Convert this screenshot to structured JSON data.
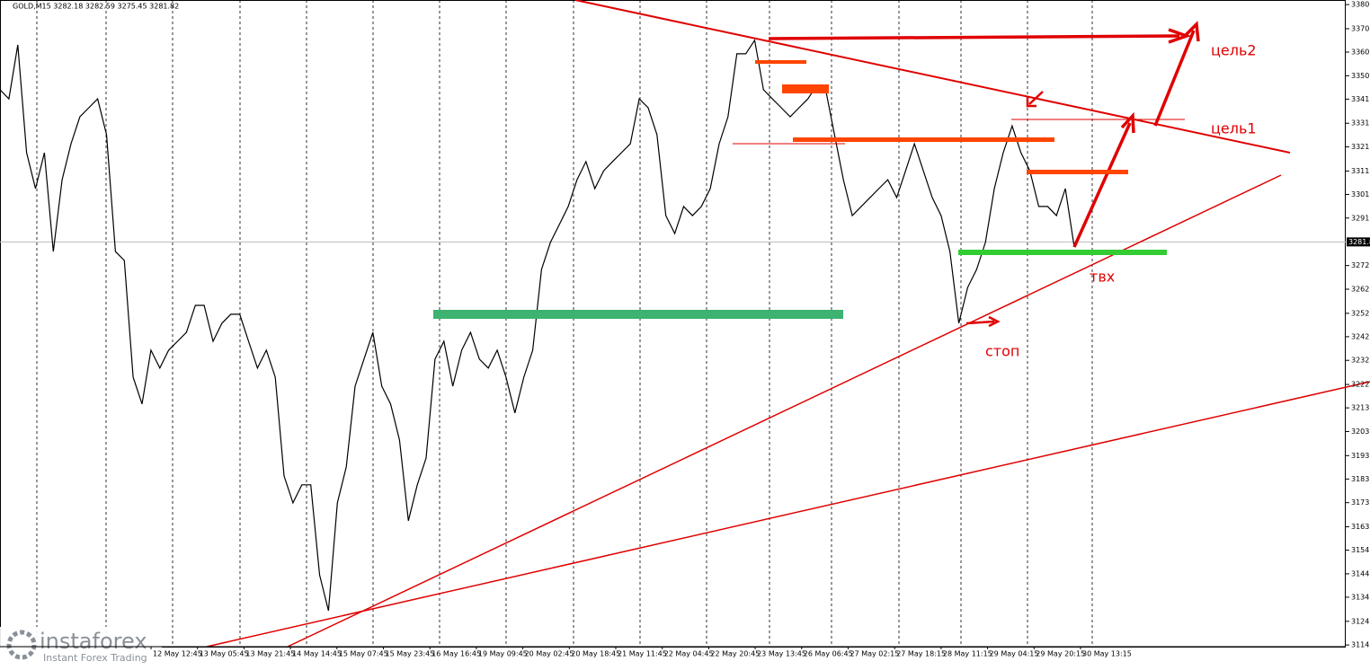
{
  "chart_data": {
    "type": "line",
    "title": "GOLD,M15  3282.18 3282.59 3275.45 3281.82",
    "x_labels": [
      "12 May 12:45",
      "13 May 05:45",
      "13 May 21:45",
      "14 May 14:45",
      "15 May 07:45",
      "15 May 23:45",
      "16 May 16:45",
      "19 May 09:45",
      "20 May 02:45",
      "20 May 18:45",
      "21 May 11:45",
      "22 May 04:45",
      "22 May 20:45",
      "23 May 13:45",
      "26 May 06:45",
      "27 May 02:15",
      "27 May 18:15",
      "28 May 11:15",
      "29 May 04:15",
      "29 May 20:15",
      "30 May 13:15"
    ],
    "series": [
      {
        "name": "GOLD,M15",
        "color": "#000000",
        "values": [
          3344.9,
          3341.1,
          3363.5,
          3318.8,
          3303.9,
          3318.8,
          3277.8,
          3307.6,
          3322.5,
          3333.7,
          3337.4,
          3341.1,
          3326.3,
          3277.8,
          3274.1,
          3225.7,
          3214.6,
          3236.9,
          3229.5,
          3236.9,
          3240.6,
          3244.3,
          3255.5,
          3255.5,
          3240.6,
          3248.1,
          3251.8,
          3251.8,
          3240.6,
          3229.5,
          3236.9,
          3225.7,
          3184.8,
          3173.6,
          3181.1,
          3181.1,
          3143.8,
          3128.9,
          3173.6,
          3188.5,
          3222.0,
          3233.2,
          3244.3,
          3222.0,
          3214.6,
          3199.7,
          3166.2,
          3181.1,
          3192.2,
          3233.2,
          3240.6,
          3222.0,
          3236.9,
          3244.3,
          3233.2,
          3229.5,
          3236.9,
          3225.7,
          3210.9,
          3225.7,
          3236.9,
          3270.4,
          3281.6,
          3289.0,
          3296.5,
          3307.6,
          3315.1,
          3303.9,
          3311.3,
          3315.1,
          3318.8,
          3322.5,
          3341.1,
          3337.4,
          3326.3,
          3292.7,
          3285.3,
          3296.5,
          3292.7,
          3296.5,
          3303.9,
          3322.5,
          3333.7,
          3359.8,
          3359.8,
          3365.4,
          3344.9,
          3341.1,
          3337.4,
          3333.7,
          3337.4,
          3341.1,
          3346.7,
          3344.9,
          3326.3,
          3307.6,
          3292.7,
          3296.5,
          3300.2,
          3303.9,
          3307.6,
          3300.2,
          3311.3,
          3322.5,
          3311.3,
          3300.2,
          3292.7,
          3277.8,
          3248.1,
          3263.0,
          3270.4,
          3281.6,
          3303.9,
          3318.8,
          3329.9,
          3318.8,
          3311.3,
          3296.5,
          3296.5,
          3292.7,
          3303.9,
          3279.7
        ]
      }
    ],
    "ylim": [
      3114.0,
      3382.1
    ],
    "yticks": [
      3380.2,
      3370.2,
      3360.5,
      3350.7,
      3341.0,
      3331.0,
      3321.2,
      3311.2,
      3301.5,
      3291.7,
      3272.0,
      3262.2,
      3252.2,
      3242.5,
      3232.7,
      3222.7,
      3213.0,
      3203.2,
      3193.2,
      3183.5,
      3173.7,
      3163.7,
      3154.0,
      3144.2,
      3134.5,
      3124.5,
      3114.7
    ],
    "last_price": 3281.8,
    "annotations": [
      "цель2",
      "цель1",
      "твх",
      "стоп"
    ],
    "watermark": {
      "name": "instaforex",
      "tagline": "Instant Forex Trading"
    }
  }
}
